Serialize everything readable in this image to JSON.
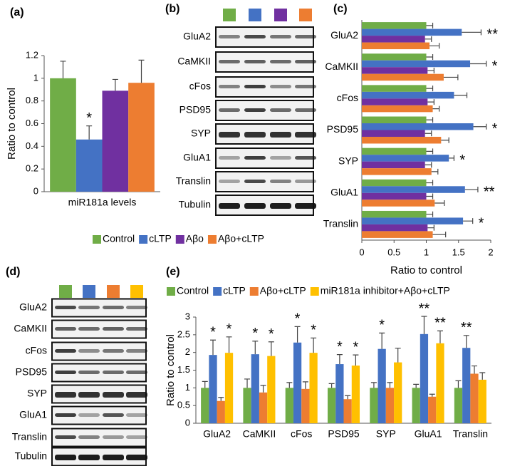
{
  "chart_data": [
    {
      "type": "bar",
      "panel": "(a)",
      "categories": [
        "miR181a levels"
      ],
      "ylabel": "Ratio to control",
      "ylim": [
        0,
        1.2
      ],
      "yticks": [
        0,
        0.2,
        0.4,
        0.6,
        0.8,
        1,
        1.2
      ],
      "series": [
        {
          "name": "Control",
          "color": "#70ad47",
          "values": [
            1
          ],
          "errors": [
            0.15
          ]
        },
        {
          "name": "cLTP",
          "color": "#4472c4",
          "values": [
            0.46
          ],
          "errors": [
            0.12
          ]
        },
        {
          "name": "Aβo",
          "color": "#7030a0",
          "values": [
            0.89
          ],
          "errors": [
            0.1
          ]
        },
        {
          "name": "Aβo+cLTP",
          "color": "#ed7d31",
          "values": [
            0.96
          ],
          "errors": [
            0.2
          ]
        }
      ],
      "annotations": [
        {
          "text": "*",
          "series": 1,
          "category": 0
        }
      ]
    },
    {
      "type": "barh",
      "panel": "(c)",
      "categories": [
        "GluA2",
        "CaMKII",
        "cFos",
        "PSD95",
        "SYP",
        "GluA1",
        "Translin"
      ],
      "xlabel": "Ratio to control",
      "xlim": [
        0,
        2
      ],
      "xticks": [
        0,
        0.5,
        1,
        1.5,
        2
      ],
      "series": [
        {
          "color": "#70ad47",
          "values": [
            1,
            1,
            1,
            1,
            1,
            1,
            1
          ],
          "errors": [
            0.1,
            0.1,
            0.1,
            0.1,
            0.1,
            0.1,
            0.1
          ]
        },
        {
          "color": "#4472c4",
          "values": [
            1.55,
            1.68,
            1.43,
            1.73,
            1.35,
            1.6,
            1.57
          ],
          "errors": [
            0.3,
            0.25,
            0.2,
            0.2,
            0.08,
            0.2,
            0.15
          ]
        },
        {
          "color": "#7030a0",
          "values": [
            0.98,
            1.02,
            1.02,
            0.98,
            0.98,
            1,
            1.02
          ],
          "errors": [
            0.1,
            0.1,
            0.1,
            0.1,
            0.1,
            0.1,
            0.1
          ]
        },
        {
          "color": "#ed7d31",
          "values": [
            1.05,
            1.27,
            1.1,
            1.23,
            1.08,
            1.13,
            1.1
          ],
          "errors": [
            0.15,
            0.22,
            0.1,
            0.12,
            0.1,
            0.15,
            0.2
          ]
        }
      ],
      "annotations": [
        {
          "text": "**",
          "series": 1,
          "category": 0
        },
        {
          "text": "*",
          "series": 1,
          "category": 1
        },
        {
          "text": "*",
          "series": 1,
          "category": 3
        },
        {
          "text": "*",
          "series": 1,
          "category": 4
        },
        {
          "text": "**",
          "series": 1,
          "category": 5
        },
        {
          "text": "*",
          "series": 1,
          "category": 6
        }
      ]
    },
    {
      "type": "bar",
      "panel": "(e)",
      "categories": [
        "GluA2",
        "CaMKII",
        "cFos",
        "PSD95",
        "SYP",
        "GluA1",
        "Translin"
      ],
      "ylabel": "Ratio to control",
      "ylim": [
        0,
        3
      ],
      "yticks": [
        0,
        0.5,
        1,
        1.5,
        2,
        2.5,
        3
      ],
      "series": [
        {
          "name": "Control",
          "color": "#70ad47",
          "values": [
            1,
            1,
            1,
            1,
            1,
            1,
            1
          ],
          "errors": [
            0.18,
            0.25,
            0.15,
            0.12,
            0.15,
            0.1,
            0.2
          ]
        },
        {
          "name": "cLTP",
          "color": "#4472c4",
          "values": [
            1.93,
            1.95,
            2.28,
            1.67,
            2.1,
            2.52,
            2.13
          ],
          "errors": [
            0.42,
            0.37,
            0.45,
            0.27,
            0.45,
            0.5,
            0.35
          ]
        },
        {
          "name": "Aβo+cLTP",
          "color": "#ed7d31",
          "values": [
            0.63,
            0.87,
            0.97,
            0.68,
            1,
            0.75,
            1.4
          ],
          "errors": [
            0.1,
            0.2,
            0.2,
            0.1,
            0.15,
            0.07,
            0.22
          ]
        },
        {
          "name": "miR181a inhibitor+Aβo+cLTP",
          "color": "#ffc000",
          "values": [
            1.99,
            1.9,
            1.99,
            1.63,
            1.72,
            2.26,
            1.23
          ],
          "errors": [
            0.45,
            0.4,
            0.42,
            0.3,
            0.4,
            0.35,
            0.2
          ]
        }
      ],
      "annotations": [
        {
          "text": "*",
          "series": 1,
          "category": 0
        },
        {
          "text": "*",
          "series": 3,
          "category": 0
        },
        {
          "text": "*",
          "series": 1,
          "category": 1
        },
        {
          "text": "*",
          "series": 3,
          "category": 1
        },
        {
          "text": "*",
          "series": 1,
          "category": 2
        },
        {
          "text": "*",
          "series": 3,
          "category": 2
        },
        {
          "text": "*",
          "series": 1,
          "category": 3
        },
        {
          "text": "*",
          "series": 3,
          "category": 3
        },
        {
          "text": "*",
          "series": 1,
          "category": 4
        },
        {
          "text": "**",
          "series": 1,
          "category": 5
        },
        {
          "text": "**",
          "series": 3,
          "category": 5
        },
        {
          "text": "**",
          "series": 1,
          "category": 6
        }
      ]
    }
  ],
  "blots": [
    {
      "panel": "(b)",
      "lane_colors": [
        "#70ad47",
        "#4472c4",
        "#7030a0",
        "#ed7d31"
      ],
      "rows": [
        "GluA2",
        "CaMKII",
        "cFos",
        "PSD95",
        "SYP",
        "GluA1",
        "Translin",
        "Tubulin"
      ]
    },
    {
      "panel": "(d)",
      "lane_colors": [
        "#70ad47",
        "#4472c4",
        "#ed7d31",
        "#ffc000"
      ],
      "rows": [
        "GluA2",
        "CaMKII",
        "cFos",
        "PSD95",
        "SYP",
        "GluA1",
        "Translin",
        "Tubulin"
      ]
    }
  ]
}
